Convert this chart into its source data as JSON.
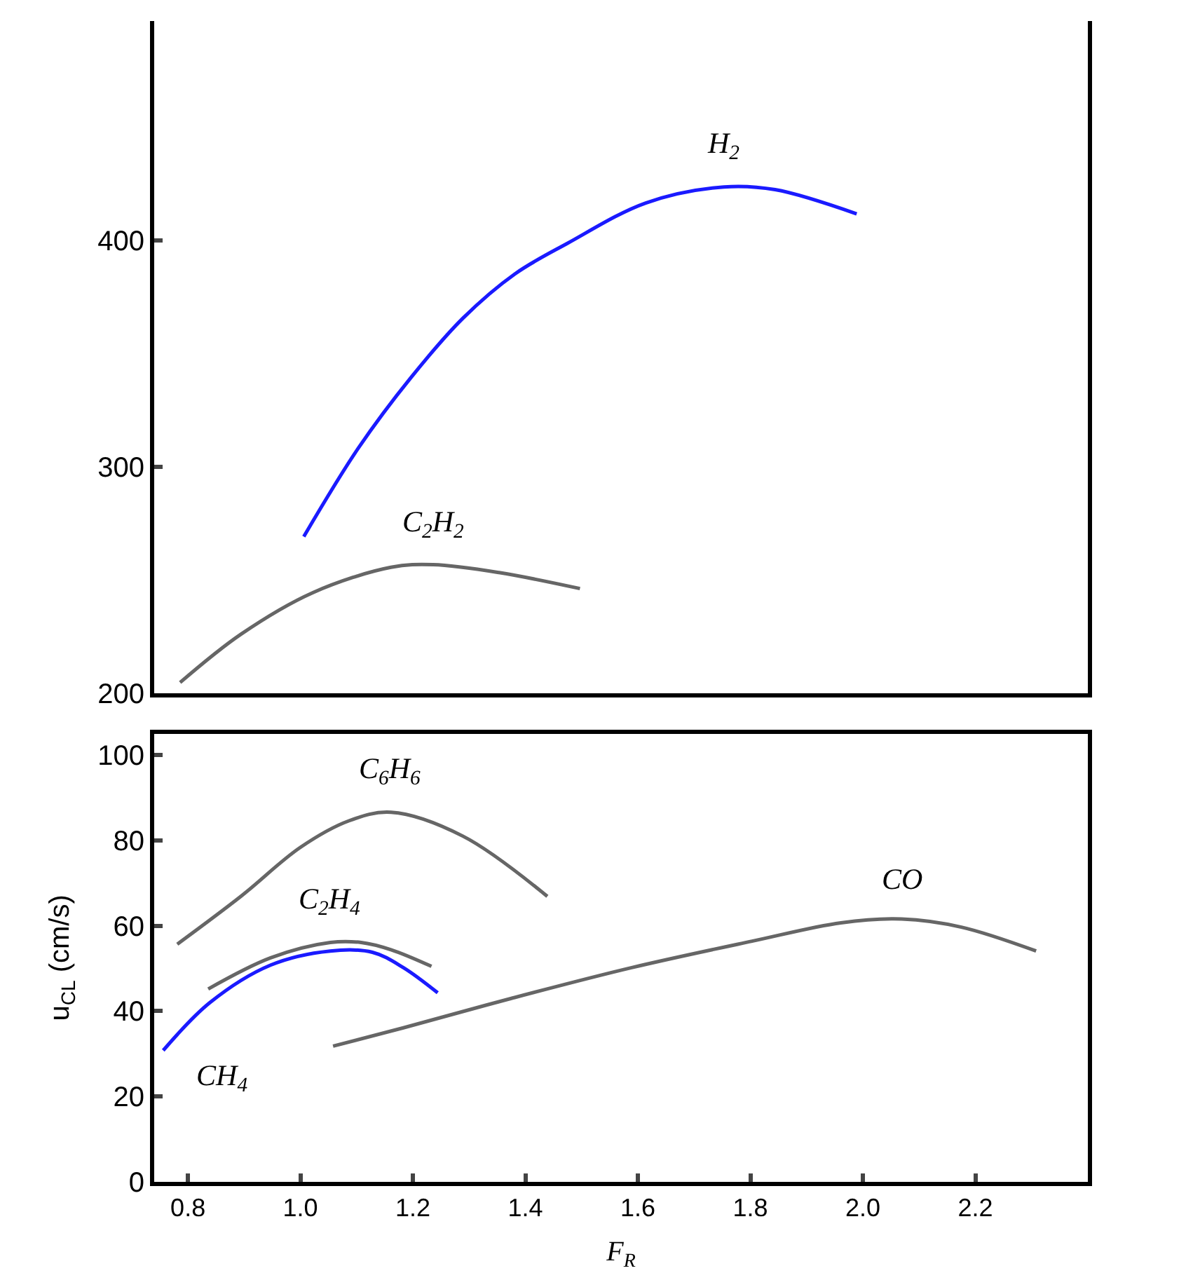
{
  "chart_data": [
    {
      "type": "line",
      "xlim": [
        0.74,
        2.4
      ],
      "ylim": [
        200,
        497
      ],
      "yticks": [
        200,
        300,
        400
      ],
      "tick_labels": "y",
      "legend": false,
      "marker": "none",
      "line_style": "solid",
      "series": [
        {
          "name": "H$_{2}$",
          "color": "#1a1aff",
          "x": [
            1.006,
            1.103,
            1.197,
            1.289,
            1.381,
            1.475,
            1.614,
            1.753,
            1.844,
            1.989
          ],
          "values": [
            269.2,
            308.3,
            339.6,
            365.7,
            385.2,
            398.8,
            416.6,
            423.7,
            422.5,
            411.8
          ]
        },
        {
          "name": "C$_{2}$H$_{2}$",
          "color": "#666666",
          "x": [
            0.786,
            0.894,
            1.022,
            1.161,
            1.236,
            1.353,
            1.497
          ],
          "values": [
            204.7,
            226.0,
            244.4,
            255.6,
            256.8,
            253.3,
            246.2
          ]
        }
      ]
    },
    {
      "type": "line",
      "xlabel": "F$_{R}$",
      "ylabel": "u$_{CL}$ (cm/s)",
      "xlim": [
        0.74,
        2.4
      ],
      "ylim": [
        0,
        105
      ],
      "yticks": [
        0,
        20,
        40,
        60,
        80,
        100
      ],
      "xticks": [
        0.8,
        {
          "value": 1,
          "label": "1.0"
        },
        1.2,
        1.4,
        1.6,
        1.8,
        {
          "value": 2,
          "label": "2.0"
        },
        2.2
      ],
      "legend": false,
      "marker": "none",
      "line_style": "solid",
      "series": [
        {
          "name": "CH$_{4}$",
          "color": "#1a1aff",
          "x": [
            0.756,
            0.839,
            0.947,
            1.053,
            1.128,
            1.183,
            1.244
          ],
          "values": [
            30.8,
            42.0,
            50.8,
            54.1,
            53.8,
            50.2,
            44.3
          ]
        },
        {
          "name": "C$_{2}$H$_{4}$",
          "color": "#666666",
          "x": [
            0.836,
            0.947,
            1.053,
            1.108,
            1.161,
            1.233
          ],
          "values": [
            45.2,
            52.5,
            56.1,
            56.1,
            54.4,
            50.5
          ]
        },
        {
          "name": "C$_{6}$H$_{6}$",
          "color": "#666666",
          "x": [
            0.781,
            0.894,
            1.0,
            1.086,
            1.161,
            1.289,
            1.439
          ],
          "values": [
            55.7,
            66.9,
            78.4,
            84.6,
            86.6,
            81.0,
            66.9
          ]
        },
        {
          "name": "CO",
          "color": "#666666",
          "x": [
            1.058,
            1.183,
            1.375,
            1.589,
            1.803,
            1.961,
            2.069,
            2.175,
            2.308
          ],
          "values": [
            31.8,
            36.1,
            43.0,
            50.2,
            56.4,
            60.7,
            61.6,
            59.7,
            54.1
          ]
        }
      ]
    }
  ]
}
